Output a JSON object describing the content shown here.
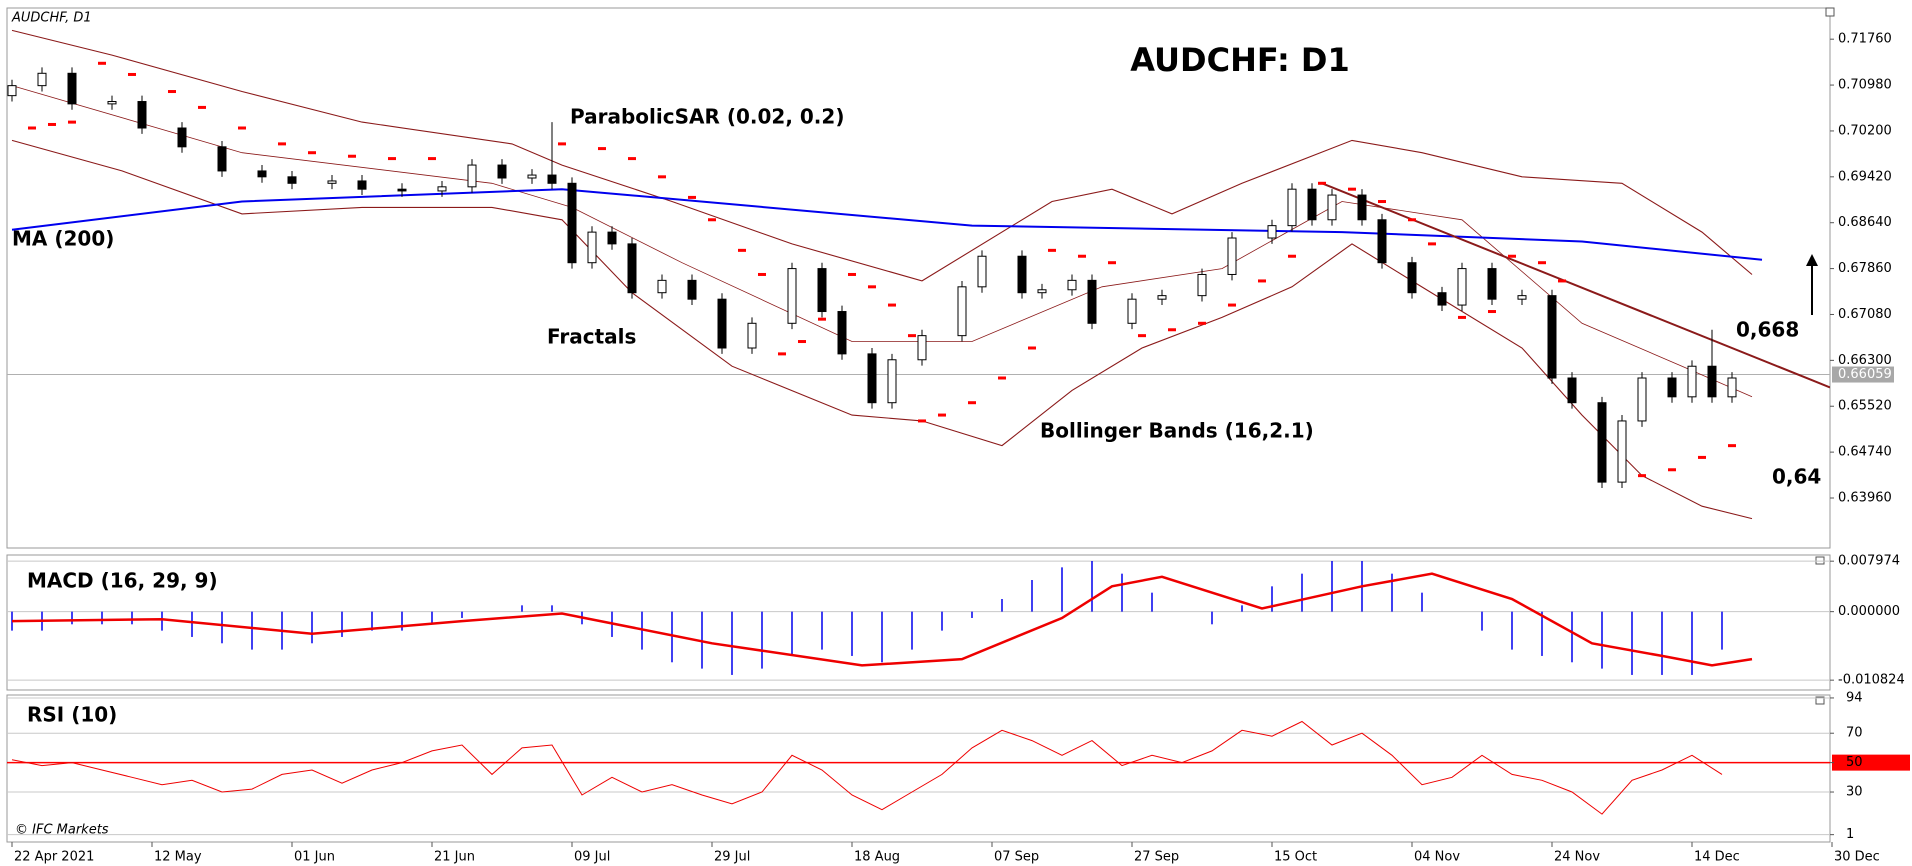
{
  "chart_data": {
    "type": "candlestick",
    "title": "AUDCHF: D1",
    "symbol_label": "AUDCHF, D1",
    "copyright": "© IFC Markets",
    "x": [
      0,
      3,
      6,
      10,
      13,
      17,
      21,
      25,
      28,
      32,
      35,
      39,
      43,
      46,
      49,
      52,
      54,
      56,
      58,
      60,
      62,
      65,
      68,
      71,
      74,
      78,
      81,
      83,
      86,
      88,
      91,
      95,
      97,
      101,
      103,
      106,
      108,
      112,
      115,
      119,
      122,
      126,
      128,
      130,
      132,
      135,
      137,
      140,
      143,
      145,
      148,
      151,
      154,
      156,
      159,
      161,
      163,
      166,
      168,
      170,
      172
    ],
    "open": [
      0.708,
      0.7097,
      0.7118,
      0.7066,
      0.707,
      0.7025,
      0.6993,
      0.6952,
      0.6942,
      0.6931,
      0.6935,
      0.6921,
      0.6918,
      0.6925,
      0.6962,
      0.694,
      0.6945,
      0.6931,
      0.6796,
      0.6848,
      0.6828,
      0.6745,
      0.6766,
      0.6734,
      0.6651,
      0.6693,
      0.6786,
      0.6713,
      0.6641,
      0.6558,
      0.6631,
      0.6672,
      0.6755,
      0.6807,
      0.6745,
      0.675,
      0.6766,
      0.6693,
      0.6734,
      0.674,
      0.6776,
      0.6838,
      0.6859,
      0.6921,
      0.6869,
      0.6911,
      0.6869,
      0.6796,
      0.6745,
      0.6724,
      0.6786,
      0.6734,
      0.674,
      0.66,
      0.6558,
      0.6423,
      0.6527,
      0.66,
      0.6568,
      0.662,
      0.6568
    ],
    "high": [
      0.7107,
      0.7128,
      0.7128,
      0.708,
      0.708,
      0.7035,
      0.7003,
      0.6962,
      0.6952,
      0.6945,
      0.6945,
      0.6931,
      0.6935,
      0.6972,
      0.6972,
      0.6955,
      0.7035,
      0.6941,
      0.6858,
      0.6858,
      0.6838,
      0.6776,
      0.6776,
      0.6744,
      0.6703,
      0.6796,
      0.6796,
      0.6723,
      0.6651,
      0.6641,
      0.6682,
      0.6765,
      0.6817,
      0.6817,
      0.676,
      0.6776,
      0.6776,
      0.6744,
      0.675,
      0.6786,
      0.6848,
      0.6869,
      0.6931,
      0.6931,
      0.6921,
      0.6921,
      0.6879,
      0.6806,
      0.6755,
      0.6796,
      0.6796,
      0.675,
      0.675,
      0.661,
      0.6568,
      0.6537,
      0.661,
      0.661,
      0.663,
      0.6682,
      0.661
    ],
    "low": [
      0.707,
      0.7087,
      0.7056,
      0.7056,
      0.7015,
      0.6983,
      0.6942,
      0.6932,
      0.6921,
      0.6921,
      0.6911,
      0.6908,
      0.6908,
      0.6915,
      0.693,
      0.693,
      0.6921,
      0.6786,
      0.6786,
      0.6818,
      0.6735,
      0.6735,
      0.6724,
      0.6641,
      0.6641,
      0.6683,
      0.6703,
      0.6631,
      0.6548,
      0.6548,
      0.6621,
      0.6662,
      0.6745,
      0.6735,
      0.6735,
      0.674,
      0.6683,
      0.6683,
      0.6724,
      0.673,
      0.6766,
      0.6828,
      0.6849,
      0.6859,
      0.6859,
      0.6859,
      0.6786,
      0.6735,
      0.6714,
      0.6714,
      0.6724,
      0.6724,
      0.659,
      0.6548,
      0.6413,
      0.6413,
      0.6517,
      0.6558,
      0.6558,
      0.6558,
      0.6558
    ],
    "close": [
      0.7097,
      0.7118,
      0.7066,
      0.707,
      0.7025,
      0.6993,
      0.6952,
      0.6942,
      0.6931,
      0.6935,
      0.6921,
      0.6918,
      0.6925,
      0.6962,
      0.694,
      0.6945,
      0.6931,
      0.6796,
      0.6848,
      0.6828,
      0.6745,
      0.6766,
      0.6734,
      0.6651,
      0.6693,
      0.6786,
      0.6713,
      0.6641,
      0.6558,
      0.6631,
      0.6672,
      0.6755,
      0.6807,
      0.6745,
      0.675,
      0.6766,
      0.6693,
      0.6734,
      0.674,
      0.6776,
      0.6838,
      0.6859,
      0.6921,
      0.6869,
      0.6911,
      0.6869,
      0.6796,
      0.6745,
      0.6724,
      0.6786,
      0.6734,
      0.674,
      0.66,
      0.6558,
      0.6423,
      0.6527,
      0.66,
      0.6568,
      0.662,
      0.6568,
      0.66
    ],
    "up_color": "#ffffff",
    "down_color": "#000000",
    "xlim": [
      -0.5,
      181.8
    ],
    "xticks": [
      {
        "value": 0,
        "label": "22 Apr 2021"
      },
      {
        "value": 14,
        "label": "12 May"
      },
      {
        "value": 28,
        "label": "01 Jun"
      },
      {
        "value": 42,
        "label": "21 Jun"
      },
      {
        "value": 56,
        "label": "09 Jul"
      },
      {
        "value": 70,
        "label": "29 Jul"
      },
      {
        "value": 84,
        "label": "18 Aug"
      },
      {
        "value": 98,
        "label": "07 Sep"
      },
      {
        "value": 112,
        "label": "27 Sep"
      },
      {
        "value": 126,
        "label": "15 Oct"
      },
      {
        "value": 140,
        "label": "04 Nov"
      },
      {
        "value": 154,
        "label": "24 Nov"
      },
      {
        "value": 168,
        "label": "14 Dec"
      },
      {
        "value": 182,
        "label": "30 Dec"
      }
    ],
    "ylim": [
      0.6311,
      0.7229
    ],
    "yticks": [
      {
        "value": 0.7176,
        "label": "0.71760"
      },
      {
        "value": 0.7098,
        "label": "0.70980"
      },
      {
        "value": 0.702,
        "label": "0.70200"
      },
      {
        "value": 0.6942,
        "label": "0.69420"
      },
      {
        "value": 0.6864,
        "label": "0.68640"
      },
      {
        "value": 0.6786,
        "label": "0.67860"
      },
      {
        "value": 0.6708,
        "label": "0.67080"
      },
      {
        "value": 0.663,
        "label": "0.66300"
      },
      {
        "value": 0.6552,
        "label": "0.65520"
      },
      {
        "value": 0.6474,
        "label": "0.64740"
      },
      {
        "value": 0.6396,
        "label": "0.63960"
      }
    ],
    "last_price": {
      "value": 0.66059,
      "label": "0.66059"
    },
    "ma": {
      "name": "MA (200)",
      "color": "#0000ee",
      "x": [
        0,
        23,
        55,
        96,
        133,
        157,
        175
      ],
      "values": [
        0.6852,
        0.69,
        0.6921,
        0.6859,
        0.6848,
        0.6832,
        0.6801
      ]
    },
    "bollinger": {
      "name": "Bollinger Bands (16,2.1)",
      "color": "#8b1a1a",
      "upper": {
        "x": [
          0,
          10,
          23,
          35,
          50,
          55,
          66,
          78,
          91,
          104,
          110,
          116,
          123,
          134,
          141,
          151,
          161,
          169,
          174
        ],
        "values": [
          0.7191,
          0.7149,
          0.7087,
          0.7035,
          0.6998,
          0.6962,
          0.69,
          0.6828,
          0.6765,
          0.69,
          0.6921,
          0.6879,
          0.6931,
          0.7004,
          0.6983,
          0.6942,
          0.6931,
          0.6848,
          0.6776
        ]
      },
      "middle": {
        "x": [
          0,
          23,
          48,
          56,
          67,
          84,
          96,
          109,
          121,
          133,
          145,
          157,
          167,
          174
        ],
        "values": [
          0.7097,
          0.6983,
          0.6931,
          0.689,
          0.6796,
          0.6662,
          0.6662,
          0.6755,
          0.6786,
          0.69,
          0.6869,
          0.6693,
          0.662,
          0.6568
        ]
      },
      "lower": {
        "x": [
          0,
          11,
          23,
          35,
          48,
          55,
          62,
          72,
          84,
          91,
          99,
          106,
          113,
          121,
          128,
          134,
          140,
          151,
          157,
          163,
          169,
          174
        ],
        "values": [
          0.7004,
          0.6952,
          0.6879,
          0.689,
          0.689,
          0.6869,
          0.6745,
          0.662,
          0.6537,
          0.6527,
          0.6485,
          0.6579,
          0.6651,
          0.6703,
          0.6755,
          0.6828,
          0.6765,
          0.6651,
          0.6537,
          0.6434,
          0.6382,
          0.6361
        ]
      }
    },
    "sar": {
      "name": "ParabolicSAR (0.02, 0.2)",
      "color": "#ff0000",
      "x": [
        2,
        4,
        6,
        9,
        12,
        16,
        19,
        23,
        27,
        30,
        34,
        38,
        42,
        55,
        59,
        62,
        65,
        68,
        70,
        73,
        75,
        77,
        79,
        81,
        84,
        86,
        88,
        90,
        91,
        93,
        96,
        99,
        102,
        104,
        107,
        110,
        113,
        116,
        119,
        122,
        125,
        128,
        131,
        134,
        137,
        140,
        142,
        145,
        148,
        150,
        153,
        155,
        163,
        166,
        169,
        172
      ],
      "values": [
        0.7025,
        0.7031,
        0.7035,
        0.7135,
        0.7116,
        0.7087,
        0.706,
        0.7025,
        0.6998,
        0.6983,
        0.6977,
        0.6973,
        0.6973,
        0.6998,
        0.699,
        0.6973,
        0.6942,
        0.6907,
        0.6869,
        0.6817,
        0.6776,
        0.6641,
        0.6662,
        0.67,
        0.6776,
        0.6755,
        0.6724,
        0.6672,
        0.6527,
        0.6537,
        0.6558,
        0.66,
        0.6651,
        0.6817,
        0.6807,
        0.6796,
        0.6672,
        0.6682,
        0.6693,
        0.6724,
        0.6765,
        0.6807,
        0.6931,
        0.6921,
        0.69,
        0.6869,
        0.6828,
        0.6703,
        0.6713,
        0.6807,
        0.6796,
        0.6765,
        0.6434,
        0.6444,
        0.6465,
        0.6485
      ]
    },
    "trendline": {
      "color": "#8b1a1a",
      "x": [
        131,
        181.8
      ],
      "values": [
        0.6931,
        0.6584
      ]
    },
    "annotations": [
      "Fractals",
      "0,668",
      "0,64"
    ],
    "macd": {
      "title": "MACD (16, 29, 9)",
      "ylim": [
        -0.01238,
        0.00895
      ],
      "yticks": [
        {
          "value": 0.007974,
          "label": "0.007974"
        },
        {
          "value": 0,
          "label": "0.000000"
        },
        {
          "value": -0.010824,
          "label": "-0.010824"
        }
      ],
      "histogram": {
        "color": "#0000ee",
        "x": [
          0,
          3,
          6,
          9,
          12,
          15,
          18,
          21,
          24,
          27,
          30,
          33,
          36,
          39,
          42,
          45,
          48,
          51,
          54,
          57,
          60,
          63,
          66,
          69,
          72,
          75,
          78,
          81,
          84,
          87,
          90,
          93,
          96,
          99,
          102,
          105,
          108,
          111,
          114,
          117,
          120,
          123,
          126,
          129,
          132,
          135,
          138,
          141,
          144,
          147,
          150,
          153,
          156,
          159,
          162,
          165,
          168,
          171
        ],
        "values": [
          -0.003,
          -0.003,
          -0.002,
          -0.002,
          -0.002,
          -0.003,
          -0.004,
          -0.005,
          -0.006,
          -0.006,
          -0.005,
          -0.004,
          -0.003,
          -0.003,
          -0.002,
          -0.001,
          0,
          0.001,
          0.001,
          -0.002,
          -0.004,
          -0.006,
          -0.008,
          -0.009,
          -0.01,
          -0.009,
          -0.007,
          -0.006,
          -0.007,
          -0.008,
          -0.006,
          -0.003,
          -0.001,
          0.002,
          0.005,
          0.007,
          0.008,
          0.006,
          0.003,
          0,
          -0.002,
          0.001,
          0.004,
          0.006,
          0.008,
          0.008,
          0.006,
          0.003,
          0,
          -0.003,
          -0.006,
          -0.007,
          -0.008,
          -0.009,
          -0.01,
          -0.01,
          -0.01,
          -0.006
        ]
      },
      "signal": {
        "color": "#ee0000",
        "x": [
          0,
          15,
          30,
          45,
          55,
          70,
          85,
          95,
          105,
          110,
          115,
          125,
          135,
          142,
          150,
          158,
          165,
          170,
          174
        ],
        "values": [
          -0.0015,
          -0.0012,
          -0.0035,
          -0.0015,
          -0.0003,
          -0.005,
          -0.0085,
          -0.0075,
          -0.001,
          0.004,
          0.0055,
          0.0005,
          0.004,
          0.006,
          0.002,
          -0.005,
          -0.007,
          -0.0085,
          -0.0075
        ]
      }
    },
    "rsi": {
      "title": "RSI (10)",
      "color": "#ee0000",
      "ylim": [
        -4,
        96
      ],
      "yticks": [
        94,
        70,
        50,
        30,
        1
      ],
      "level": 50,
      "level_color": "#ff0000",
      "x": [
        0,
        3,
        6,
        9,
        12,
        15,
        18,
        21,
        24,
        27,
        30,
        33,
        36,
        39,
        42,
        45,
        48,
        51,
        54,
        57,
        60,
        63,
        66,
        69,
        72,
        75,
        78,
        81,
        84,
        87,
        90,
        93,
        96,
        99,
        102,
        105,
        108,
        111,
        114,
        117,
        120,
        123,
        126,
        129,
        132,
        135,
        138,
        141,
        144,
        147,
        150,
        153,
        156,
        159,
        162,
        165,
        168,
        171
      ],
      "values": [
        52,
        48,
        50,
        45,
        40,
        35,
        38,
        30,
        32,
        42,
        45,
        36,
        45,
        50,
        58,
        62,
        42,
        60,
        62,
        28,
        40,
        30,
        35,
        28,
        22,
        30,
        55,
        45,
        28,
        18,
        30,
        42,
        60,
        72,
        65,
        55,
        65,
        48,
        55,
        50,
        58,
        72,
        68,
        78,
        62,
        70,
        55,
        35,
        40,
        55,
        42,
        38,
        30,
        15,
        38,
        45,
        55,
        42
      ]
    }
  }
}
